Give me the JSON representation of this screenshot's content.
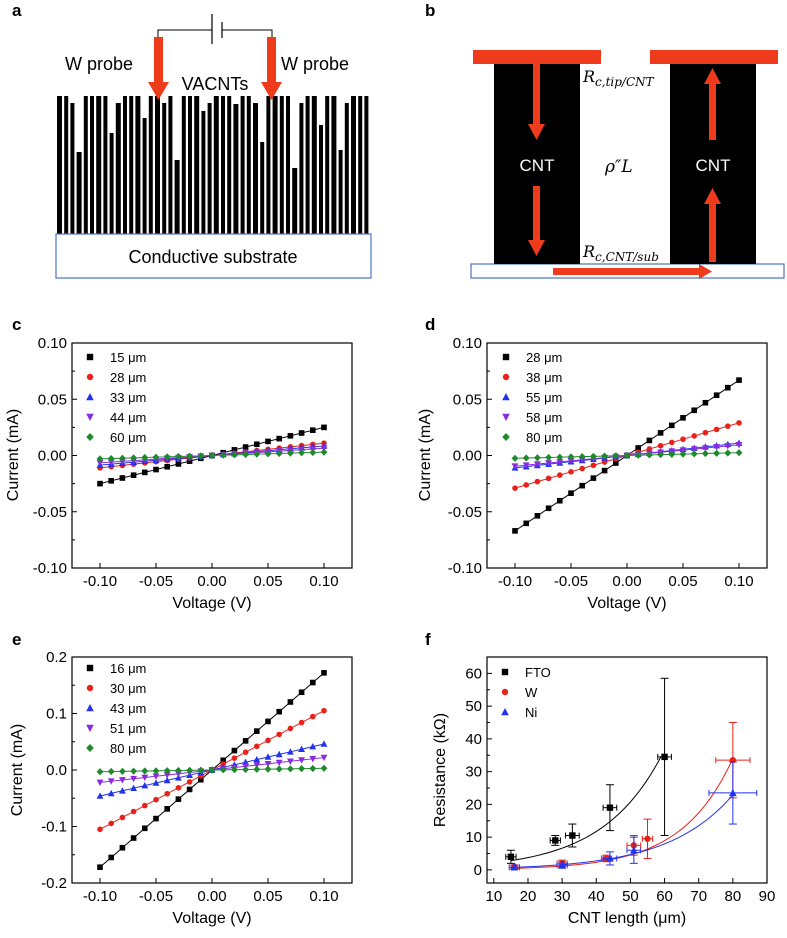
{
  "colors": {
    "black": "#000000",
    "red": "#e8221a",
    "blue": "#2233ee",
    "purple": "#8a2be2",
    "green": "#1f8a2b",
    "probe_red": "#ee3b1b",
    "substrate_border": "#4a72c4"
  },
  "diagram_a": {
    "panel_label": "a",
    "probe_left": "W probe",
    "probe_right": "W probe",
    "center_label": "VACNTs",
    "substrate_label": "Conductive substrate",
    "icons": [
      "battery-icon"
    ]
  },
  "diagram_b": {
    "panel_label": "b",
    "cnt_left": "CNT",
    "cnt_right": "CNT",
    "resistance_tip": "R",
    "resistance_tip_sub": "c,tip/CNT",
    "resistivity": "ρ″L",
    "resistance_sub": "R",
    "resistance_sub_sub": "c,CNT/sub"
  },
  "chart_data": [
    {
      "panel": "c",
      "type": "scatter",
      "xlabel": "Voltage (V)",
      "ylabel": "Current (mA)",
      "xlim": [
        -0.125,
        0.125
      ],
      "ylim": [
        -0.1,
        0.1
      ],
      "xticks": [
        -0.1,
        -0.05,
        0.0,
        0.05,
        0.1
      ],
      "xtick_labels": [
        "-0.10",
        "-0.05",
        "0.00",
        "0.05",
        "0.10"
      ],
      "yticks": [
        -0.1,
        -0.05,
        0.0,
        0.05,
        0.1
      ],
      "ytick_labels": [
        "-0.10",
        "-0.05",
        "0.00",
        "0.05",
        "0.10"
      ],
      "x": [
        -0.1,
        -0.09,
        -0.08,
        -0.07,
        -0.06,
        -0.05,
        -0.04,
        -0.03,
        -0.02,
        -0.01,
        0.0,
        0.01,
        0.02,
        0.03,
        0.04,
        0.05,
        0.06,
        0.07,
        0.08,
        0.09,
        0.1
      ],
      "series": [
        {
          "name": "15 μm",
          "marker": "square",
          "color": "#000000",
          "slope": 0.25
        },
        {
          "name": "28 μm",
          "marker": "circle",
          "color": "#e8221a",
          "slope": 0.11
        },
        {
          "name": "33 μm",
          "marker": "triangle",
          "color": "#2233ee",
          "slope": 0.085
        },
        {
          "name": "44 μm",
          "marker": "triangle-down",
          "color": "#8a2be2",
          "slope": 0.065
        },
        {
          "name": "60 μm",
          "marker": "diamond",
          "color": "#1f8a2b",
          "slope": 0.03
        }
      ]
    },
    {
      "panel": "d",
      "type": "scatter",
      "xlabel": "Voltage (V)",
      "ylabel": "Current (mA)",
      "xlim": [
        -0.125,
        0.125
      ],
      "ylim": [
        -0.1,
        0.1
      ],
      "xticks": [
        -0.1,
        -0.05,
        0.0,
        0.05,
        0.1
      ],
      "xtick_labels": [
        "-0.10",
        "-0.05",
        "0.00",
        "0.05",
        "0.10"
      ],
      "yticks": [
        -0.1,
        -0.05,
        0.0,
        0.05,
        0.1
      ],
      "ytick_labels": [
        "-0.10",
        "-0.05",
        "0.00",
        "0.05",
        "0.10"
      ],
      "x": [
        -0.1,
        -0.09,
        -0.08,
        -0.07,
        -0.06,
        -0.05,
        -0.04,
        -0.03,
        -0.02,
        -0.01,
        0.0,
        0.01,
        0.02,
        0.03,
        0.04,
        0.05,
        0.06,
        0.07,
        0.08,
        0.09,
        0.1
      ],
      "series": [
        {
          "name": "28 μm",
          "marker": "square",
          "color": "#000000",
          "slope": 0.67
        },
        {
          "name": "38 μm",
          "marker": "circle",
          "color": "#e8221a",
          "slope": 0.29
        },
        {
          "name": "55 μm",
          "marker": "triangle",
          "color": "#2233ee",
          "slope": 0.11
        },
        {
          "name": "58 μm",
          "marker": "triangle-down",
          "color": "#8a2be2",
          "slope": 0.095
        },
        {
          "name": "80 μm",
          "marker": "diamond",
          "color": "#1f8a2b",
          "slope": 0.025
        }
      ]
    },
    {
      "panel": "e",
      "type": "scatter",
      "xlabel": "Voltage (V)",
      "ylabel": "Current (mA)",
      "xlim": [
        -0.125,
        0.125
      ],
      "ylim": [
        -0.2,
        0.2
      ],
      "xticks": [
        -0.1,
        -0.05,
        0.0,
        0.05,
        0.1
      ],
      "xtick_labels": [
        "-0.10",
        "-0.05",
        "0.00",
        "0.05",
        "0.10"
      ],
      "yticks": [
        -0.2,
        -0.1,
        0.0,
        0.1,
        0.2
      ],
      "ytick_labels": [
        "-0.2",
        "-0.1",
        "0.0",
        "0.1",
        "0.2"
      ],
      "x": [
        -0.1,
        -0.09,
        -0.08,
        -0.07,
        -0.06,
        -0.05,
        -0.04,
        -0.03,
        -0.02,
        -0.01,
        0.0,
        0.01,
        0.02,
        0.03,
        0.04,
        0.05,
        0.06,
        0.07,
        0.08,
        0.09,
        0.1
      ],
      "series": [
        {
          "name": "16 μm",
          "marker": "square",
          "color": "#000000",
          "slope": 1.72
        },
        {
          "name": "30 μm",
          "marker": "circle",
          "color": "#e8221a",
          "slope": 1.05
        },
        {
          "name": "43 μm",
          "marker": "triangle",
          "color": "#2233ee",
          "slope": 0.46
        },
        {
          "name": "51 μm",
          "marker": "triangle-down",
          "color": "#8a2be2",
          "slope": 0.22
        },
        {
          "name": "80 μm",
          "marker": "diamond",
          "color": "#1f8a2b",
          "slope": 0.03
        }
      ]
    },
    {
      "panel": "f",
      "type": "scatter",
      "xlabel": "CNT length (μm)",
      "ylabel": "Resistance (kΩ)",
      "xlim": [
        8,
        90
      ],
      "ylim": [
        -4,
        65
      ],
      "xticks": [
        10,
        20,
        30,
        40,
        50,
        60,
        70,
        80,
        90
      ],
      "xtick_labels": [
        "10",
        "20",
        "30",
        "40",
        "50",
        "60",
        "70",
        "80",
        "90"
      ],
      "yticks": [
        0,
        10,
        20,
        30,
        40,
        50,
        60
      ],
      "ytick_labels": [
        "0",
        "10",
        "20",
        "30",
        "40",
        "50",
        "60"
      ],
      "series": [
        {
          "name": "FTO",
          "marker": "square",
          "color": "#000000",
          "points": [
            {
              "x": 15,
              "y": 4,
              "yerr": 2,
              "xerr": 1.5
            },
            {
              "x": 28,
              "y": 9,
              "yerr": 1.5,
              "xerr": 1.5
            },
            {
              "x": 33,
              "y": 10.5,
              "yerr": 3.5,
              "xerr": 2
            },
            {
              "x": 44,
              "y": 19,
              "yerr": 7,
              "xerr": 2
            },
            {
              "x": 60,
              "y": 34.5,
              "yerr": 24,
              "xerr": 2
            }
          ],
          "fit": {
            "a": 1.2,
            "b": 0.057,
            "x0": 15,
            "x1": 59
          }
        },
        {
          "name": "W",
          "marker": "circle",
          "color": "#e8221a",
          "points": [
            {
              "x": 16,
              "y": 1,
              "yerr": 0.5,
              "xerr": 0
            },
            {
              "x": 30,
              "y": 2,
              "yerr": 1,
              "xerr": 1.5
            },
            {
              "x": 43,
              "y": 3.5,
              "yerr": 1,
              "xerr": 1.5
            },
            {
              "x": 51,
              "y": 7.5,
              "yerr": 3,
              "xerr": 2
            },
            {
              "x": 55,
              "y": 9.5,
              "yerr": 6,
              "xerr": 1.5
            },
            {
              "x": 80,
              "y": 33.5,
              "yerr": 11.5,
              "xerr": 5
            }
          ],
          "fit": {
            "a": 0.16,
            "b": 0.067,
            "x0": 15,
            "x1": 80
          }
        },
        {
          "name": "Ni",
          "marker": "triangle",
          "color": "#2233ee",
          "points": [
            {
              "x": 16,
              "y": 0.8,
              "yerr": 0.6,
              "xerr": 1.5
            },
            {
              "x": 30,
              "y": 1.5,
              "yerr": 1,
              "xerr": 1.5
            },
            {
              "x": 44,
              "y": 3.5,
              "yerr": 2,
              "xerr": 2
            },
            {
              "x": 51,
              "y": 6,
              "yerr": 4,
              "xerr": 2
            },
            {
              "x": 80,
              "y": 23.5,
              "yerr": 9.5,
              "xerr": 7
            }
          ],
          "fit": {
            "a": 0.33,
            "b": 0.053,
            "x0": 15,
            "x1": 80
          }
        }
      ]
    }
  ]
}
